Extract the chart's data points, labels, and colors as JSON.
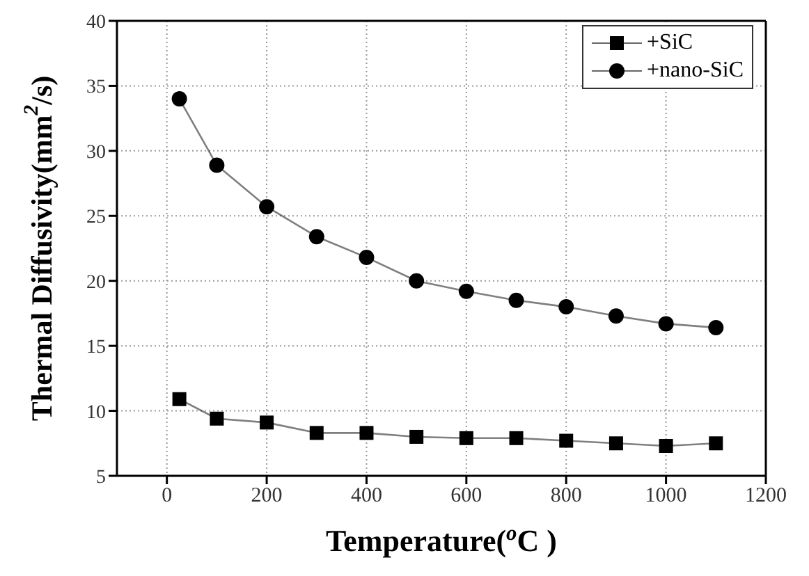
{
  "chart_data": {
    "type": "line",
    "xlabel": "Temperature($^{o}$C )",
    "ylabel": "Thermal Diffusivity(mm$^{2}$/s)",
    "x": [
      25,
      100,
      200,
      300,
      400,
      500,
      600,
      700,
      800,
      900,
      1000,
      1100
    ],
    "series": [
      {
        "name": "+SiC",
        "color": "#000000",
        "marker": "square",
        "values": [
          10.9,
          9.4,
          9.1,
          8.3,
          8.3,
          8.0,
          7.9,
          7.9,
          7.7,
          7.5,
          7.3,
          7.5
        ]
      },
      {
        "name": "+nano-SiC",
        "color": "#000000",
        "marker": "circle",
        "values": [
          34.0,
          28.9,
          25.7,
          23.4,
          21.8,
          20.0,
          19.2,
          18.5,
          18.0,
          17.3,
          16.7,
          16.4
        ]
      }
    ],
    "xlim": [
      -100,
      1200
    ],
    "xticks": [
      0,
      200,
      400,
      600,
      800,
      1000,
      1200
    ],
    "ylim": [
      5,
      40
    ],
    "yticks": [
      5,
      10,
      15,
      20,
      25,
      30,
      35,
      40
    ],
    "grid": true,
    "legend": "top right",
    "line_style": "solid"
  }
}
